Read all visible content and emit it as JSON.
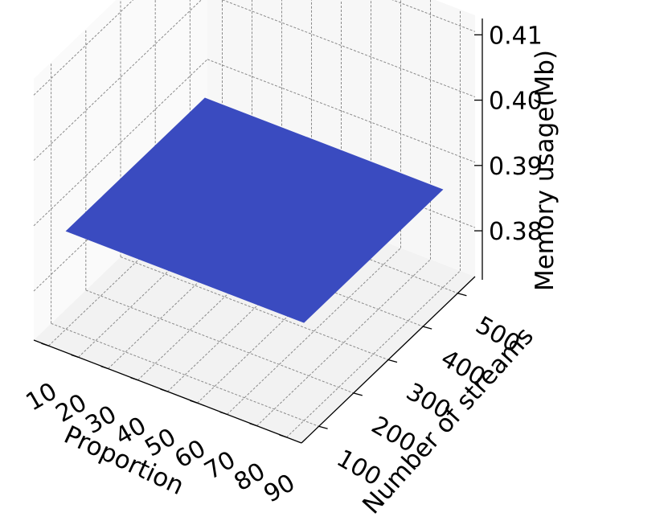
{
  "chart_data": {
    "type": "surface3d",
    "title": "",
    "xlabel": "Proportion",
    "ylabel": "Number of streams",
    "zlabel": "Memory usage(Mb)",
    "x_ticks": [
      "10",
      "20",
      "30",
      "40",
      "50",
      "60",
      "70",
      "80",
      "90"
    ],
    "y_ticks": [
      "100",
      "200",
      "300",
      "400",
      "500"
    ],
    "z_ticks": [
      "0.38",
      "0.39",
      "0.40",
      "0.41"
    ],
    "xlim": [
      5,
      95
    ],
    "ylim": [
      50,
      550
    ],
    "zlim": [
      0.3725,
      0.4125
    ],
    "surface": {
      "x": [
        10,
        90
      ],
      "y": [
        100,
        500
      ],
      "z": [
        [
          0.3875,
          0.3875
        ],
        [
          0.3875,
          0.3875
        ]
      ]
    },
    "grid": true,
    "colors": {
      "surface": "#3a4bc0",
      "pane": "#f4f4f4",
      "grid": "#8a8a8a"
    }
  }
}
